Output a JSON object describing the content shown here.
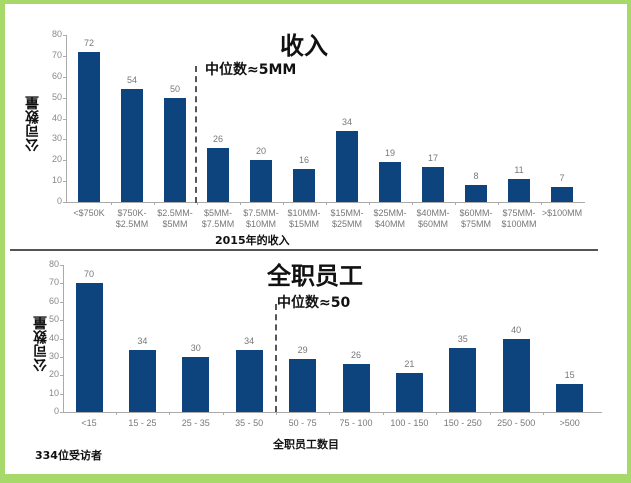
{
  "colors": {
    "frame": "#a6d96a",
    "bar": "#0d447d",
    "background": "#ffffff"
  },
  "chart_data": [
    {
      "type": "bar",
      "title": "收入",
      "annotation": "中位数≈5MM",
      "xlabel": "2015年的收入",
      "ylabel": "公司数量",
      "ylim": [
        0,
        80
      ],
      "yticks": [
        "0",
        "10",
        "20",
        "30",
        "40",
        "50",
        "60",
        "70",
        "80"
      ],
      "categories": [
        "<$750K",
        "$750K-$2.5MM",
        "$2.5MM-$5MM",
        "$5MM-$7.5MM",
        "$7.5MM-$10MM",
        "$10MM-$15MM",
        "$15MM-$25MM",
        "$25MM-$40MM",
        "$40MM-$60MM",
        "$60MM-$75MM",
        "$75MM-$100MM",
        ">$100MM"
      ],
      "category_lines": [
        [
          "<$750K",
          ""
        ],
        [
          "$750K-",
          "$2.5MM"
        ],
        [
          "$2.5MM-",
          "$5MM"
        ],
        [
          "$5MM-",
          "$7.5MM"
        ],
        [
          "$7.5MM-",
          "$10MM"
        ],
        [
          "$10MM-",
          "$15MM"
        ],
        [
          "$15MM-",
          "$25MM"
        ],
        [
          "$25MM-",
          "$40MM"
        ],
        [
          "$40MM-",
          "$60MM"
        ],
        [
          "$60MM-",
          "$75MM"
        ],
        [
          "$75MM-",
          "$100MM"
        ],
        [
          ">$100MM",
          ""
        ]
      ],
      "values": [
        72,
        54,
        50,
        26,
        20,
        16,
        34,
        19,
        17,
        8,
        11,
        7
      ],
      "value_labels": [
        "72",
        "54",
        "50",
        "26",
        "20",
        "16",
        "34",
        "19",
        "17",
        "8",
        "11",
        "7"
      ],
      "median_marker_after_index": 2,
      "grid": false
    },
    {
      "type": "bar",
      "title": "全职员工",
      "annotation": "中位数≈50",
      "xlabel": "全职员工数目",
      "ylabel": "公司数量",
      "ylim": [
        0,
        80
      ],
      "yticks": [
        "0",
        "10",
        "20",
        "30",
        "40",
        "50",
        "60",
        "70",
        "80"
      ],
      "categories": [
        "<15",
        "15 - 25",
        "25 - 35",
        "35 - 50",
        "50 - 75",
        "75 - 100",
        "100 - 150",
        "150 - 250",
        "250 - 500",
        ">500"
      ],
      "values": [
        70,
        34,
        30,
        34,
        29,
        26,
        21,
        35,
        40,
        15
      ],
      "value_labels": [
        "70",
        "34",
        "30",
        "34",
        "29",
        "26",
        "21",
        "35",
        "40",
        "15"
      ],
      "median_marker_after_index": 3,
      "grid": false
    }
  ],
  "footnote": "334位受访者"
}
